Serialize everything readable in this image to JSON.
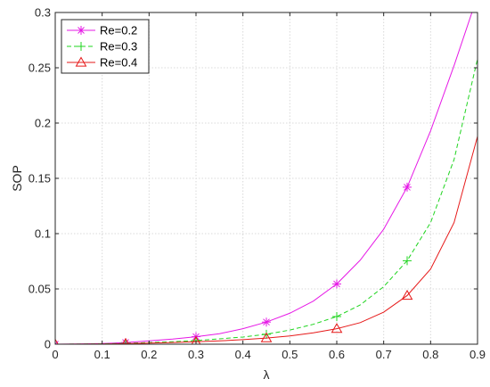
{
  "chart_data": {
    "type": "line",
    "xlabel": "λ",
    "ylabel": "SOP",
    "xlim": [
      0,
      0.9
    ],
    "ylim": [
      0,
      0.3
    ],
    "xticks": [
      0,
      0.1,
      0.2,
      0.3,
      0.4,
      0.5,
      0.6,
      0.7,
      0.8,
      0.9
    ],
    "yticks": [
      0,
      0.05,
      0.1,
      0.15,
      0.2,
      0.25,
      0.3
    ],
    "xtick_labels": [
      "0",
      "0.1",
      "0.2",
      "0.3",
      "0.4",
      "0.5",
      "0.6",
      "0.7",
      "0.8",
      "0.9"
    ],
    "ytick_labels": [
      "0",
      "0.05",
      "0.1",
      "0.15",
      "0.2",
      "0.25",
      "0.3"
    ],
    "grid": true,
    "legend_position": "top-left",
    "x": [
      0,
      0.05,
      0.1,
      0.15,
      0.2,
      0.25,
      0.3,
      0.35,
      0.4,
      0.45,
      0.5,
      0.55,
      0.6,
      0.65,
      0.7,
      0.75,
      0.8,
      0.85,
      0.9
    ],
    "marker_x": [
      0,
      0.15,
      0.3,
      0.45,
      0.6,
      0.75
    ],
    "series": [
      {
        "name": "Re=0.2",
        "color": "#e619e6",
        "dash": "solid",
        "marker": "asterisk",
        "values": [
          0,
          0.0002,
          0.0006,
          0.0015,
          0.003,
          0.0046,
          0.0068,
          0.0095,
          0.014,
          0.02,
          0.028,
          0.039,
          0.0545,
          0.076,
          0.104,
          0.142,
          0.193,
          0.252,
          0.315
        ]
      },
      {
        "name": "Re=0.3",
        "color": "#1fd41f",
        "dash": "dashed",
        "marker": "plus",
        "values": [
          0,
          0.0001,
          0.0003,
          0.0008,
          0.0015,
          0.0022,
          0.0033,
          0.0048,
          0.0065,
          0.009,
          0.0128,
          0.018,
          0.025,
          0.0355,
          0.052,
          0.0755,
          0.11,
          0.167,
          0.258
        ]
      },
      {
        "name": "Re=0.4",
        "color": "#e61919",
        "dash": "solid",
        "marker": "triangle",
        "values": [
          0,
          0.0001,
          0.0002,
          0.0005,
          0.001,
          0.0015,
          0.0022,
          0.003,
          0.0041,
          0.0055,
          0.0075,
          0.0103,
          0.014,
          0.0195,
          0.029,
          0.044,
          0.068,
          0.11,
          0.188
        ]
      }
    ]
  }
}
